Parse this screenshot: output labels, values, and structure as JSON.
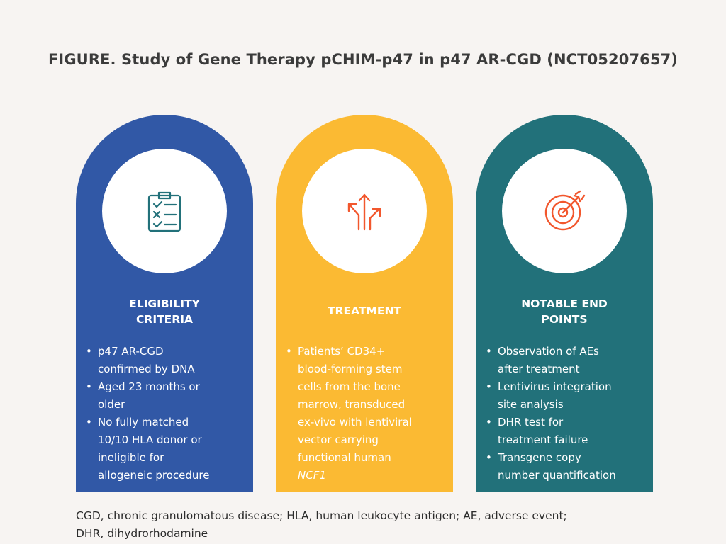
{
  "title": "FIGURE. Study of Gene Therapy pCHIM-p47 in p47 AR-CGD (NCT05207657)",
  "colors": {
    "background": "#f7f4f2",
    "eligibility": "#3158a6",
    "treatment": "#fbba33",
    "endpoints": "#22717a",
    "icon_teal": "#22717a",
    "icon_orange": "#f2572d"
  },
  "panels": [
    {
      "icon": "clipboard-checklist-icon",
      "heading_lines": [
        "ELIGIBILITY",
        "CRITERIA"
      ],
      "items": [
        [
          "p47 AR-CGD",
          "confirmed by DNA"
        ],
        [
          "Aged 23 months or",
          "older"
        ],
        [
          "No fully matched",
          "10/10 HLA donor or",
          "ineligible for",
          "allogeneic procedure"
        ]
      ]
    },
    {
      "icon": "branching-arrows-icon",
      "heading_lines": [
        "TREATMENT"
      ],
      "items": [
        [
          "Patients’ CD34+",
          "blood-forming stem",
          "cells from the bone",
          "marrow, transduced",
          "ex-vivo with lentiviral",
          "vector carrying",
          "functional human",
          "NCF1"
        ]
      ]
    },
    {
      "icon": "target-arrow-icon",
      "heading_lines": [
        "NOTABLE END",
        "POINTS"
      ],
      "items": [
        [
          "Observation of AEs",
          "after treatment"
        ],
        [
          "Lentivirus integration",
          "site analysis"
        ],
        [
          "DHR test for",
          "treatment failure"
        ],
        [
          "Transgene copy",
          "number quantification"
        ]
      ]
    }
  ],
  "footnote_lines": [
    "CGD, chronic granulomatous disease; HLA, human leukocyte antigen; AE, adverse event;",
    "DHR, dihydrorhodamine"
  ]
}
